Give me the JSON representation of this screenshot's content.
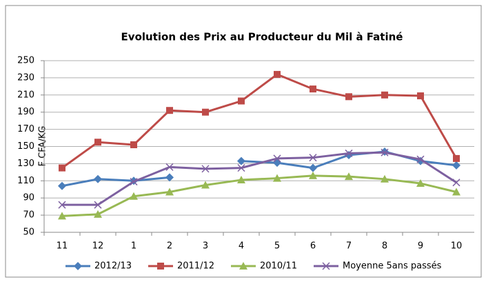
{
  "chart_data": {
    "type": "line",
    "title": "Evolution des Prix au Producteur du Mil à Fatiné",
    "ylabel": "F CFA/KG",
    "categories": [
      "11",
      "12",
      "1",
      "2",
      "3",
      "4",
      "5",
      "6",
      "7",
      "8",
      "9",
      "10"
    ],
    "series": [
      {
        "name": "2012/13",
        "color": "#4a7ebb",
        "marker": "diamond",
        "values": [
          104,
          112,
          110,
          114,
          null,
          133,
          131,
          125,
          140,
          144,
          133,
          128
        ]
      },
      {
        "name": "2011/12",
        "color": "#be4b48",
        "marker": "square",
        "values": [
          125,
          155,
          152,
          192,
          190,
          203,
          234,
          217,
          208,
          210,
          209,
          136
        ]
      },
      {
        "name": "2010/11",
        "color": "#98b954",
        "marker": "triangle",
        "values": [
          69,
          71,
          92,
          97,
          105,
          111,
          113,
          116,
          115,
          112,
          107,
          97
        ]
      },
      {
        "name": "Moyenne 5ans passés",
        "color": "#7d60a0",
        "marker": "x",
        "values": [
          82,
          82,
          109,
          126,
          124,
          125,
          136,
          137,
          142,
          143,
          135,
          108
        ]
      }
    ],
    "ylim": [
      50,
      250
    ],
    "yticks": [
      50,
      70,
      90,
      110,
      130,
      150,
      170,
      190,
      210,
      230,
      250
    ],
    "grid": true,
    "legend": "bottom"
  }
}
